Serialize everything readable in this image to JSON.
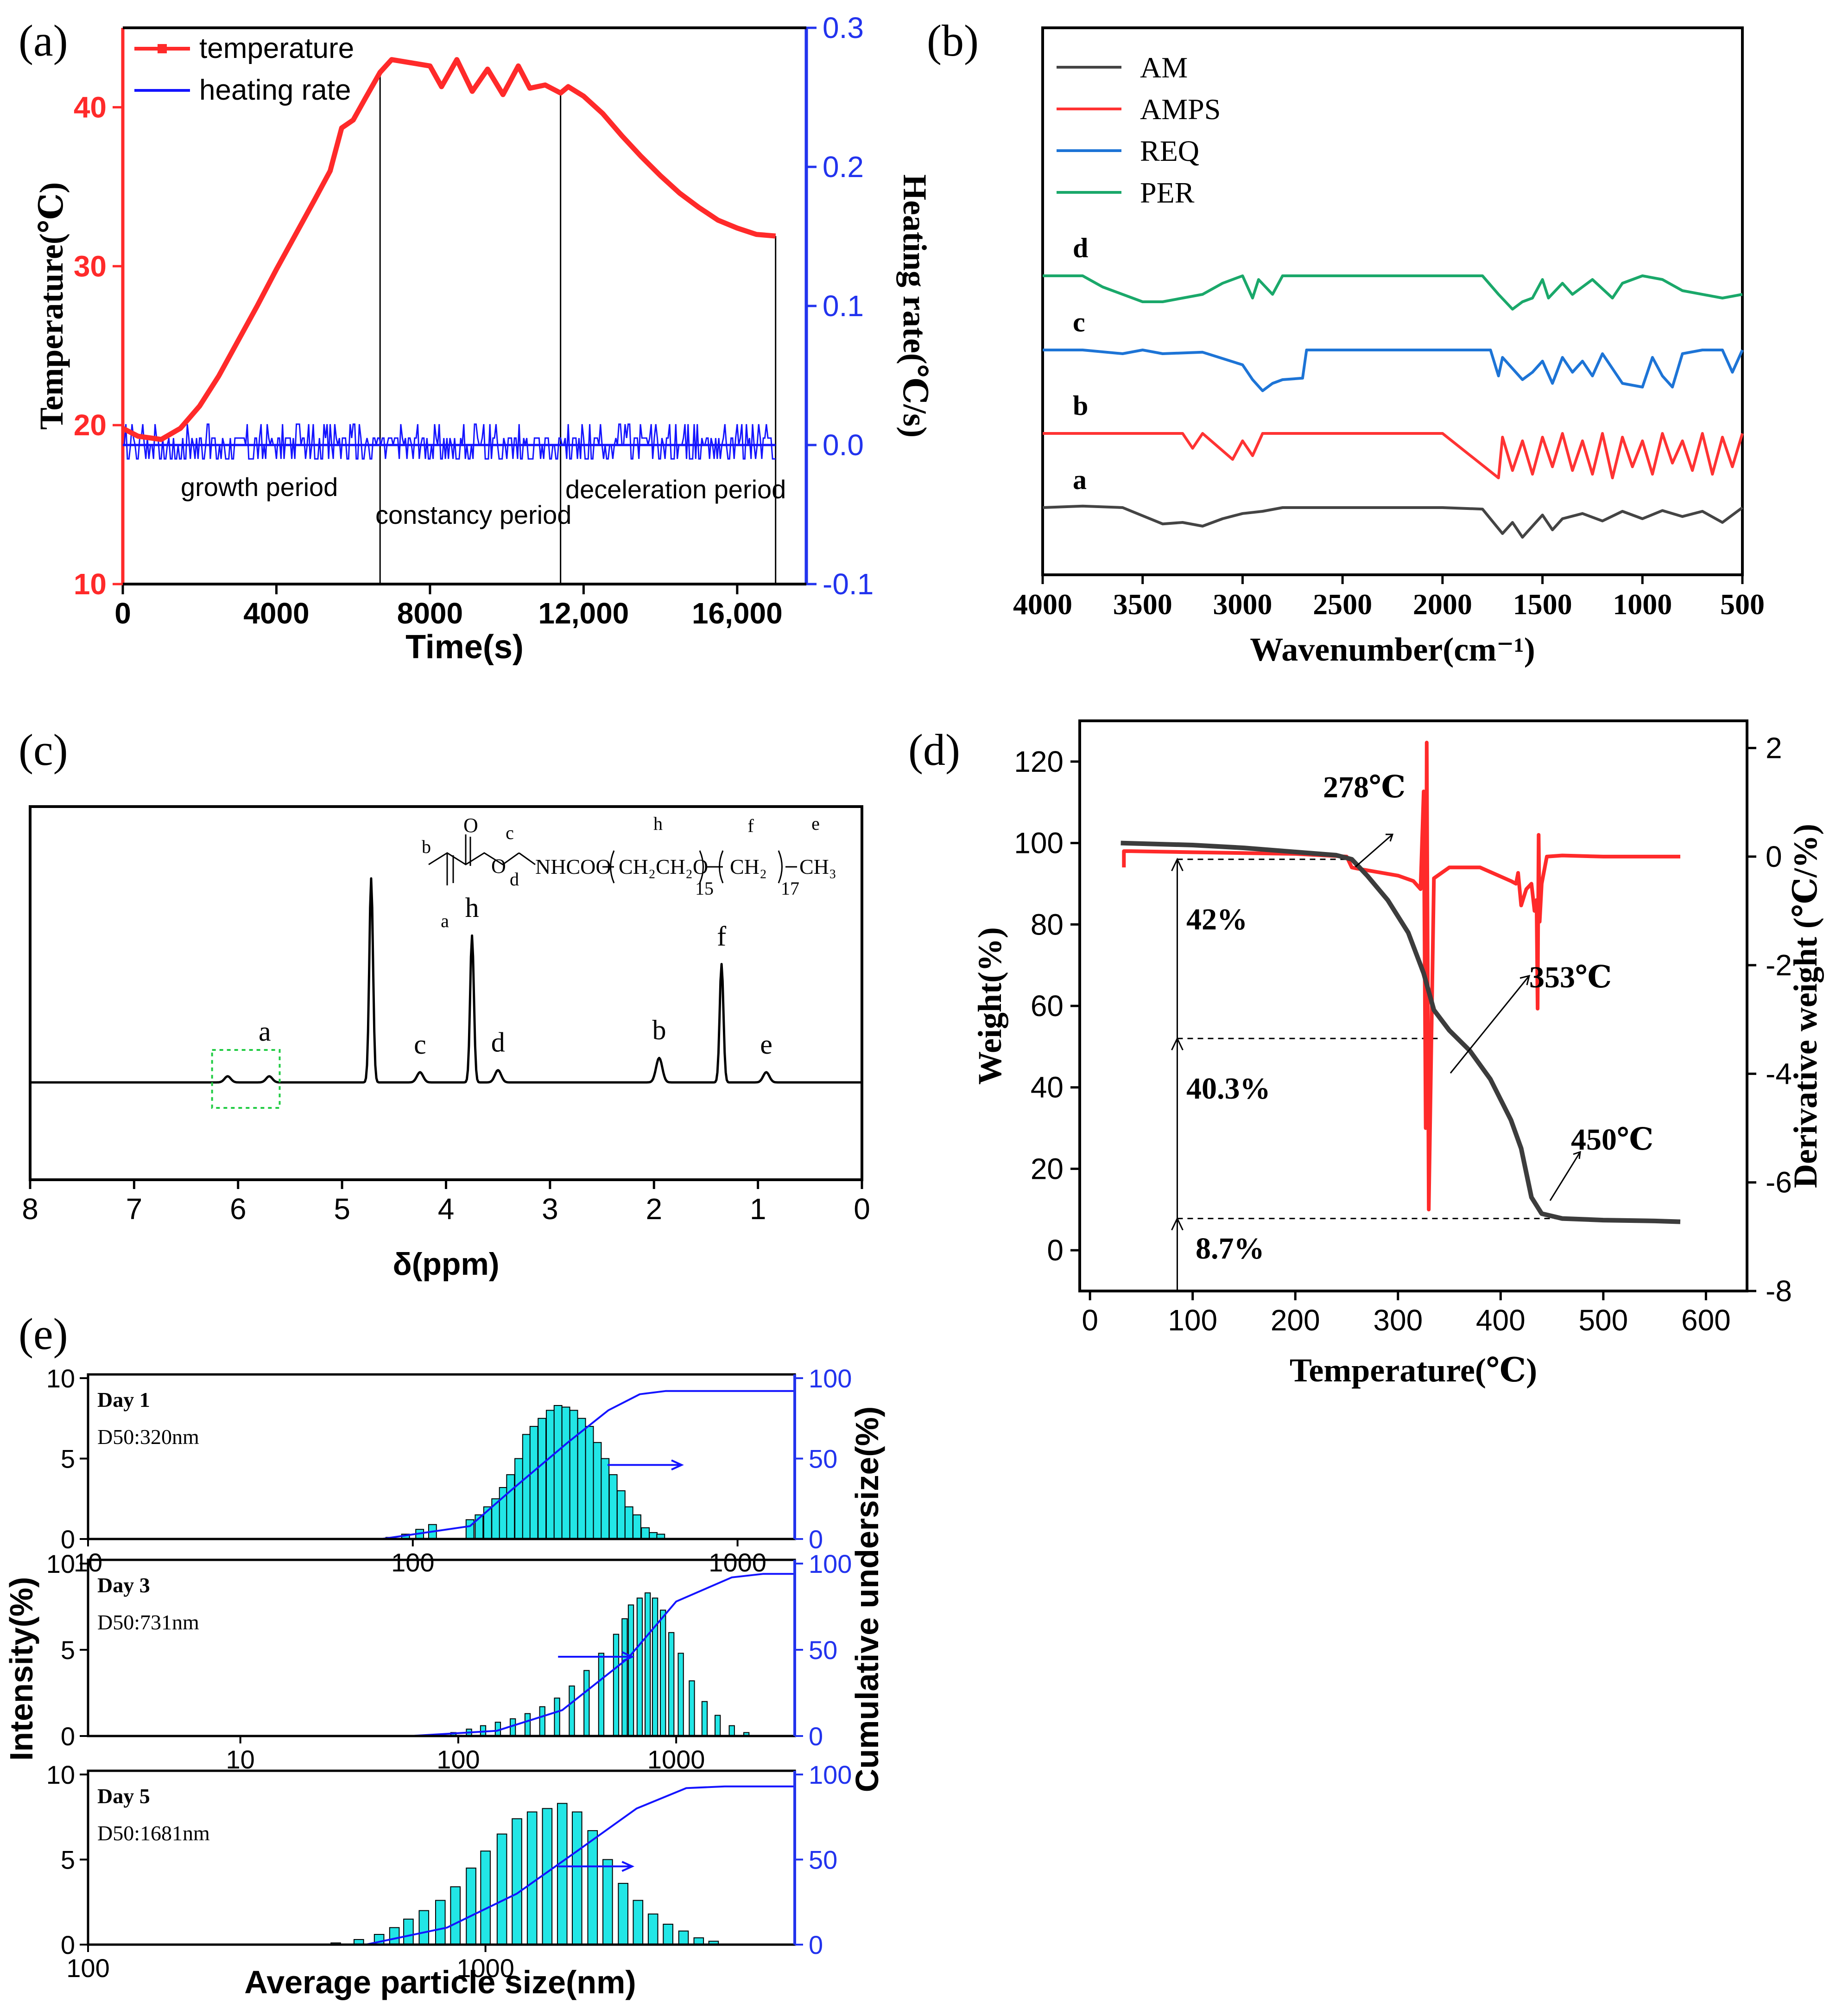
{
  "colors": {
    "red": "#ff2a2a",
    "blue": "#1414ff",
    "axis_blue": "#2233ee",
    "black": "#000000",
    "dark_grey": "#3c3c3c",
    "ftir_green": "#1aa86a",
    "ftir_blue": "#1d74d6",
    "ftir_red": "#ff3333",
    "ftir_grey": "#444444",
    "bar_fill": "#22e6e6",
    "box_green": "#22cc44"
  },
  "chart_data": [
    {
      "id": "a",
      "panel_label": "(a)",
      "type": "line",
      "title": "",
      "xlabel": "Time(s)",
      "ylabel": "Temperature(℃)",
      "y2label": "Heating rate(℃/s)",
      "xlim": [
        0,
        17800
      ],
      "ylim": [
        10,
        45
      ],
      "y2lim": [
        -0.1,
        0.3
      ],
      "xticks": [
        0,
        4000,
        8000,
        12000,
        16000
      ],
      "xtick_labels": [
        "0",
        "4000",
        "8000",
        "12,000",
        "16,000"
      ],
      "yticks": [
        10,
        20,
        30,
        40
      ],
      "y2ticks": [
        -0.1,
        0.0,
        0.1,
        0.2,
        0.3
      ],
      "y2tick_labels": [
        "-0.1",
        "0.0",
        "0.1",
        "0.2",
        "0.3"
      ],
      "legend": [
        "temperature",
        "heating rate"
      ],
      "legend_position": "top-left",
      "series": [
        {
          "name": "temperature",
          "axis": "left",
          "x": [
            0,
            400,
            1000,
            1500,
            2000,
            2500,
            3000,
            3500,
            4000,
            4500,
            5000,
            5400,
            5700,
            6000,
            6300,
            6700,
            7000,
            7500,
            8000,
            8300,
            8700,
            9100,
            9500,
            9900,
            10300,
            10600,
            11000,
            11400,
            11600,
            12000,
            12500,
            13000,
            13500,
            14000,
            14500,
            15000,
            15500,
            16000,
            16500,
            17000
          ],
          "y": [
            19.8,
            19.3,
            19.1,
            19.8,
            21.2,
            23.1,
            25.3,
            27.5,
            29.8,
            32.0,
            34.2,
            36.0,
            38.7,
            39.2,
            40.5,
            42.2,
            43.0,
            42.8,
            42.6,
            41.3,
            43.0,
            41.0,
            42.4,
            40.8,
            42.6,
            41.2,
            41.4,
            40.9,
            41.3,
            40.7,
            39.6,
            38.2,
            36.9,
            35.7,
            34.6,
            33.7,
            32.9,
            32.4,
            32.0,
            31.9
          ]
        }
      ],
      "heating_rate_baseline": 0.0,
      "heating_rate_noise_range": [
        -0.01,
        0.015
      ],
      "vlines": [
        6700,
        11400,
        17000
      ],
      "annotations": [
        "growth period",
        "constancy period",
        "deceleration period"
      ]
    },
    {
      "id": "b",
      "panel_label": "(b)",
      "type": "line",
      "title": "",
      "xlabel": "Wavenumber(cm⁻¹)",
      "ylabel": "",
      "xlim": [
        4000,
        500
      ],
      "xticks": [
        4000,
        3500,
        3000,
        2500,
        2000,
        1500,
        1000,
        500
      ],
      "legend": [
        "AM",
        "AMPS",
        "REQ",
        "PER"
      ],
      "legend_position": "top-left",
      "series_tags": [
        "a",
        "b",
        "c",
        "d"
      ],
      "series": [
        {
          "name": "AM",
          "tag": "a",
          "x": [
            4000,
            3800,
            3600,
            3400,
            3300,
            3200,
            3100,
            3000,
            2900,
            2800,
            2600,
            2000,
            1800,
            1700,
            1650,
            1600,
            1500,
            1450,
            1400,
            1300,
            1200,
            1100,
            1000,
            900,
            800,
            700,
            600,
            500
          ],
          "y": [
            0,
            2,
            0,
            -22,
            -20,
            -25,
            -15,
            -8,
            -5,
            0,
            0,
            0,
            -2,
            -35,
            -20,
            -40,
            -10,
            -30,
            -15,
            -8,
            -18,
            -5,
            -15,
            -4,
            -12,
            -5,
            -20,
            0
          ]
        },
        {
          "name": "AMPS",
          "tag": "b",
          "x": [
            4000,
            3300,
            3250,
            3200,
            3050,
            3000,
            2950,
            2900,
            2000,
            1720,
            1700,
            1650,
            1600,
            1550,
            1500,
            1450,
            1400,
            1350,
            1300,
            1250,
            1200,
            1150,
            1100,
            1050,
            1000,
            950,
            900,
            850,
            800,
            750,
            700,
            650,
            600,
            550,
            500
          ],
          "y": [
            0,
            0,
            -20,
            0,
            -35,
            -10,
            -30,
            0,
            0,
            -60,
            -5,
            -50,
            -10,
            -55,
            -5,
            -45,
            0,
            -50,
            -10,
            -55,
            0,
            -60,
            -5,
            -45,
            -10,
            -55,
            0,
            -40,
            -10,
            -50,
            0,
            -55,
            -5,
            -45,
            0
          ]
        },
        {
          "name": "REQ",
          "tag": "c",
          "x": [
            4000,
            3800,
            3600,
            3500,
            3400,
            3200,
            3000,
            2950,
            2900,
            2850,
            2800,
            2700,
            2680,
            1760,
            1720,
            1700,
            1600,
            1550,
            1500,
            1450,
            1400,
            1350,
            1300,
            1250,
            1200,
            1100,
            1000,
            950,
            900,
            850,
            800,
            700,
            600,
            550,
            500
          ],
          "y": [
            0,
            0,
            -5,
            0,
            -5,
            -3,
            -20,
            -40,
            -55,
            -45,
            -40,
            -38,
            0,
            0,
            -35,
            -10,
            -40,
            -30,
            -15,
            -45,
            -10,
            -30,
            -15,
            -35,
            -5,
            -45,
            -50,
            -10,
            -35,
            -50,
            -5,
            0,
            0,
            -30,
            0
          ]
        },
        {
          "name": "PER",
          "tag": "d",
          "x": [
            4000,
            3800,
            3700,
            3500,
            3400,
            3300,
            3200,
            3100,
            3000,
            2950,
            2920,
            2850,
            2800,
            2600,
            2000,
            1800,
            1720,
            1650,
            1600,
            1550,
            1500,
            1470,
            1400,
            1350,
            1300,
            1250,
            1150,
            1100,
            1000,
            900,
            800,
            600,
            500
          ],
          "y": [
            0,
            0,
            -15,
            -35,
            -35,
            -30,
            -25,
            -10,
            0,
            -30,
            -5,
            -25,
            0,
            0,
            0,
            0,
            -25,
            -45,
            -35,
            -30,
            -5,
            -30,
            -10,
            -25,
            -15,
            -5,
            -30,
            -10,
            0,
            -5,
            -20,
            -30,
            -25
          ]
        }
      ]
    },
    {
      "id": "c",
      "panel_label": "(c)",
      "type": "line",
      "title": "",
      "xlabel": "δ(ppm)",
      "ylabel": "",
      "xlim": [
        8,
        0
      ],
      "xticks": [
        8,
        7,
        6,
        5,
        4,
        3,
        2,
        1,
        0
      ],
      "peaks": [
        {
          "label": "a",
          "ppm": 6.1,
          "height": 3
        },
        {
          "label": "",
          "ppm": 5.7,
          "height": 3
        },
        {
          "label": "",
          "ppm": 4.72,
          "height": 100
        },
        {
          "label": "c",
          "ppm": 4.25,
          "height": 5
        },
        {
          "label": "h",
          "ppm": 3.75,
          "height": 72
        },
        {
          "label": "d",
          "ppm": 3.5,
          "height": 6
        },
        {
          "label": "b",
          "ppm": 1.95,
          "height": 12
        },
        {
          "label": "f",
          "ppm": 1.35,
          "height": 58
        },
        {
          "label": "e",
          "ppm": 0.92,
          "height": 5
        }
      ],
      "structure": {
        "main": "NHCOO",
        "chain1": "CH₂CH₂O",
        "n1": "15",
        "chain2": "CH₂",
        "n2": "17",
        "end": "CH₃",
        "labels": [
          "b",
          "a",
          "c",
          "d",
          "h",
          "f",
          "e"
        ],
        "oxygen": "O"
      }
    },
    {
      "id": "d",
      "panel_label": "(d)",
      "type": "line",
      "title": "",
      "xlabel": "Temperature(℃)",
      "ylabel": "Weight(%)",
      "y2label": "Derivative weight (℃/%)",
      "xlim": [
        -10,
        640
      ],
      "ylim": [
        -10,
        130
      ],
      "y2lim": [
        -8,
        2.5
      ],
      "xticks": [
        0,
        100,
        200,
        300,
        400,
        500,
        600
      ],
      "yticks": [
        0,
        20,
        40,
        60,
        80,
        100,
        120
      ],
      "y2ticks": [
        -8,
        -6,
        -4,
        -2,
        0,
        2
      ],
      "series": [
        {
          "name": "Weight",
          "axis": "left",
          "x": [
            30,
            100,
            150,
            200,
            240,
            255,
            270,
            290,
            310,
            325,
            335,
            350,
            370,
            390,
            410,
            420,
            430,
            440,
            460,
            500,
            550,
            575
          ],
          "y": [
            100,
            99.5,
            98.8,
            97.8,
            97,
            96,
            92,
            86,
            78,
            68,
            59,
            54,
            49,
            42,
            32,
            25,
            13,
            9,
            7.8,
            7.4,
            7.2,
            7
          ]
        },
        {
          "name": "Derivative",
          "axis": "right",
          "x": [
            33,
            33,
            40,
            100,
            200,
            250,
            255,
            260,
            300,
            315,
            322,
            325,
            327,
            328,
            330,
            335,
            350,
            380,
            410,
            415,
            417,
            420,
            425,
            430,
            433,
            435,
            436,
            437,
            438,
            440,
            445,
            460,
            500,
            575
          ],
          "y": [
            -0.2,
            0.1,
            0.1,
            0.08,
            0.05,
            0.0,
            -0.2,
            -0.22,
            -0.35,
            -0.45,
            -0.6,
            1.2,
            -5,
            2.1,
            -6.5,
            -0.4,
            -0.2,
            -0.2,
            -0.45,
            -0.5,
            -0.3,
            -0.9,
            -0.6,
            -0.5,
            -1.0,
            -0.8,
            -2.8,
            0.4,
            -1.2,
            -0.5,
            0.0,
            0.02,
            0.0,
            0.0
          ]
        }
      ],
      "annotations": [
        "278℃",
        "353℃",
        "450℃",
        "42%",
        "40.3%",
        "8.7%"
      ],
      "levels": [
        96,
        52,
        7.8
      ]
    },
    {
      "id": "e",
      "panel_label": "(e)",
      "type": "bar",
      "title": "",
      "xlabel": "Average particle size(nm)",
      "ylabel": "Intensity(%)",
      "y2label": "Cumulative undersize(%)",
      "ylim": [
        0,
        10
      ],
      "y2lim": [
        0,
        100
      ],
      "yticks": [
        0,
        5,
        10
      ],
      "y2ticks": [
        0,
        50,
        100
      ],
      "subplots": [
        {
          "day": "Day 1",
          "d50": "D50:320nm",
          "xlog": [
            10,
            1500
          ],
          "xtick_labels": [
            "10",
            "100",
            "1000"
          ],
          "xticks": [
            10,
            100,
            1000
          ],
          "x": [
            85,
            95,
            105,
            115,
            150,
            160,
            170,
            180,
            190,
            200,
            212,
            224,
            236,
            250,
            265,
            280,
            296,
            313,
            331,
            350,
            370,
            391,
            414,
            438,
            463,
            490,
            520,
            550,
            580
          ],
          "values": [
            0.1,
            0.3,
            0.6,
            0.9,
            1.2,
            1.5,
            2.0,
            2.5,
            3.2,
            4.0,
            5.0,
            6.5,
            7.0,
            7.5,
            8.0,
            8.3,
            8.2,
            8.0,
            7.5,
            7.0,
            6.0,
            5.0,
            4.0,
            3.0,
            2.0,
            1.5,
            0.7,
            0.4,
            0.3
          ],
          "cumulative": {
            "x": [
              10,
              80,
              150,
              200,
              300,
              400,
              500,
              600,
              1500
            ],
            "y": [
              0,
              0,
              8,
              30,
              60,
              80,
              90,
              92,
              92
            ]
          }
        },
        {
          "day": "Day 3",
          "d50": "D50:731nm",
          "xlog": [
            2,
            3500
          ],
          "xtick_labels": [
            "10",
            "100",
            "1000"
          ],
          "xticks": [
            10,
            100,
            1000
          ],
          "x": [
            80,
            95,
            112,
            130,
            152,
            178,
            208,
            243,
            284,
            332,
            388,
            453,
            530,
            580,
            620,
            680,
            740,
            800,
            870,
            950,
            1050,
            1180,
            1350,
            1550,
            1800,
            2100
          ],
          "values": [
            0.1,
            0.2,
            0.4,
            0.6,
            0.8,
            1.0,
            1.3,
            1.7,
            2.2,
            2.9,
            3.8,
            4.8,
            5.9,
            6.8,
            7.6,
            8.0,
            8.3,
            8.0,
            7.3,
            6.0,
            4.8,
            3.2,
            2.0,
            1.2,
            0.6,
            0.2
          ],
          "cumulative": {
            "x": [
              2,
              60,
              150,
              300,
              600,
              1000,
              1800,
              2500,
              3500
            ],
            "y": [
              0,
              0,
              3,
              15,
              45,
              78,
              92,
              94,
              94
            ]
          }
        },
        {
          "day": "Day 5",
          "d50": "D50:1681nm",
          "xlog": [
            100,
            6000
          ],
          "xtick_labels": [
            "100",
            "1000"
          ],
          "xticks": [
            100,
            1000
          ],
          "x": [
            420,
            480,
            540,
            590,
            640,
            700,
            770,
            840,
            920,
            1000,
            1100,
            1200,
            1310,
            1430,
            1560,
            1700,
            1860,
            2030,
            2220,
            2420,
            2640,
            2880,
            3150,
            3440,
            3750
          ],
          "values": [
            0.1,
            0.3,
            0.6,
            1.0,
            1.5,
            2.0,
            2.6,
            3.4,
            4.5,
            5.5,
            6.5,
            7.4,
            7.8,
            8.0,
            8.3,
            7.8,
            6.7,
            5.0,
            3.6,
            2.6,
            1.8,
            1.2,
            0.8,
            0.4,
            0.2
          ],
          "cumulative": {
            "x": [
              100,
              500,
              800,
              1200,
              1700,
              2400,
              3200,
              4000,
              6000
            ],
            "y": [
              0,
              0,
              10,
              30,
              55,
              80,
              92,
              93,
              93
            ]
          }
        }
      ],
      "arrow_direction": "right"
    }
  ]
}
